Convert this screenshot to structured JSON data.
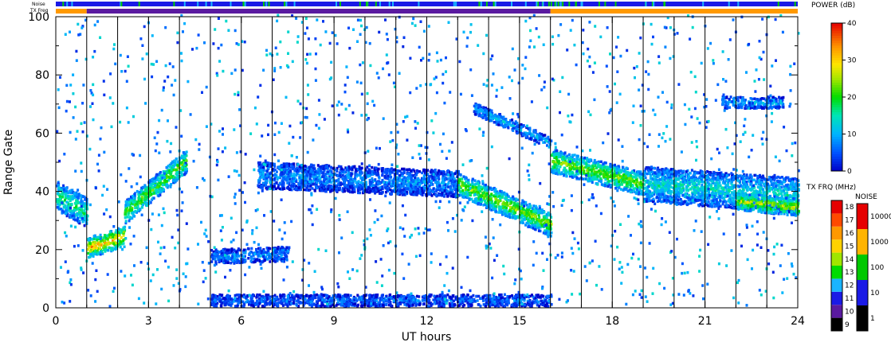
{
  "chart_data": {
    "type": "heatmap",
    "xlabel": "UT hours",
    "ylabel": "Range Gate",
    "xlim": [
      0,
      24
    ],
    "ylim": [
      0,
      100
    ],
    "x_ticks": [
      "0",
      "3",
      "6",
      "9",
      "12",
      "15",
      "18",
      "21",
      "24"
    ],
    "y_ticks": [
      "0",
      "20",
      "40",
      "60",
      "80",
      "100"
    ],
    "vertical_markers_hours": [
      1,
      2,
      3,
      4,
      5,
      6,
      7,
      8,
      9,
      10,
      11,
      12,
      13,
      14,
      15,
      16,
      17,
      18,
      19,
      20,
      21,
      22,
      23
    ],
    "top_bars": {
      "noise_label": "Noise",
      "txfreq_label": "TX Freq",
      "noise_color": "#1a1ae6",
      "txfreq_segments": [
        {
          "start": 0,
          "end": 1,
          "color": "#ff9900"
        },
        {
          "start": 1,
          "end": 16,
          "color": "#5a1aa0"
        },
        {
          "start": 16,
          "end": 24,
          "color": "#ff9900"
        }
      ]
    },
    "echo_bands": [
      {
        "name": "band-a",
        "x_start": 0,
        "x_end": 1,
        "y_start": 38,
        "y_end": 32,
        "width": 10,
        "power": 18
      },
      {
        "name": "band-b",
        "x_start": 1,
        "x_end": 2.2,
        "y_start": 20,
        "y_end": 24,
        "width": 7,
        "power": 32
      },
      {
        "name": "band-c",
        "x_start": 2.2,
        "x_end": 4.2,
        "y_start": 32,
        "y_end": 50,
        "width": 8,
        "power": 22
      },
      {
        "name": "band-d",
        "x_start": 5,
        "x_end": 7.5,
        "y_start": 17,
        "y_end": 18,
        "width": 5,
        "power": 8
      },
      {
        "name": "band-e",
        "x_start": 6.5,
        "x_end": 13,
        "y_start": 45,
        "y_end": 42,
        "width": 9,
        "power": 8
      },
      {
        "name": "band-f",
        "x_start": 13,
        "x_end": 16,
        "y_start": 42,
        "y_end": 28,
        "width": 8,
        "power": 24
      },
      {
        "name": "band-g",
        "x_start": 13.5,
        "x_end": 16,
        "y_start": 68,
        "y_end": 56,
        "width": 4,
        "power": 10
      },
      {
        "name": "band-h",
        "x_start": 16,
        "x_end": 19,
        "y_start": 50,
        "y_end": 42,
        "width": 8,
        "power": 24
      },
      {
        "name": "band-i",
        "x_start": 19,
        "x_end": 24,
        "y_start": 42,
        "y_end": 38,
        "width": 12,
        "power": 14
      },
      {
        "name": "band-j",
        "x_start": 22,
        "x_end": 24,
        "y_start": 36,
        "y_end": 34,
        "width": 6,
        "power": 26
      },
      {
        "name": "band-k",
        "x_start": 5,
        "x_end": 16,
        "y_start": 2,
        "y_end": 2,
        "width": 4,
        "power": 6
      },
      {
        "name": "band-l",
        "x_start": 21.5,
        "x_end": 23.5,
        "y_start": 70,
        "y_end": 70,
        "width": 4,
        "power": 10
      }
    ],
    "colorbars": {
      "power": {
        "title": "POWER (dB)",
        "ticks": [
          "0",
          "10",
          "20",
          "30",
          "40"
        ]
      },
      "txfreq": {
        "title": "TX FRQ (MHz)",
        "ticks": [
          "9",
          "10",
          "11",
          "12",
          "13",
          "14",
          "15",
          "16",
          "17",
          "18"
        ],
        "colors": [
          "#000000",
          "#5a1aa0",
          "#1a1ae6",
          "#1ab4ff",
          "#00dc00",
          "#a0e600",
          "#ffd200",
          "#ff9900",
          "#ff4a00",
          "#e60000"
        ]
      },
      "noise": {
        "title": "NOISE",
        "ticks": [
          "1",
          "10",
          "100",
          "1000",
          "10000"
        ],
        "colors": [
          "#000000",
          "#1a1ae6",
          "#00c800",
          "#ffb400",
          "#e60000"
        ]
      }
    }
  }
}
